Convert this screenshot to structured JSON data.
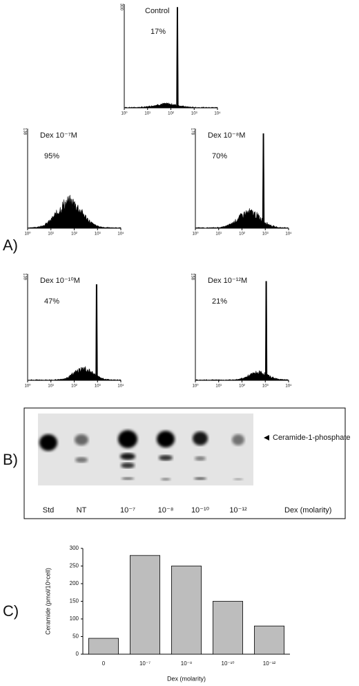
{
  "panel_a": {
    "label": "A)",
    "histograms": [
      {
        "title": "Control",
        "percent": "17%",
        "ymax_label": "300",
        "xtick_labels": [
          "10⁰",
          "10¹",
          "10²",
          "10³",
          "10⁴"
        ]
      },
      {
        "title": "Dex 10⁻⁷M",
        "percent": "95%",
        "ymax_label": "138",
        "xtick_labels": [
          "10⁰",
          "10¹",
          "10²",
          "10³",
          "10⁴"
        ]
      },
      {
        "title": "Dex 10⁻⁸M",
        "percent": "70%",
        "ymax_label": "178",
        "xtick_labels": [
          "10⁰",
          "10¹",
          "10²",
          "10³",
          "10⁴"
        ]
      },
      {
        "title": "Dex 10⁻¹⁰M",
        "percent": "47%",
        "ymax_label": "139",
        "xtick_labels": [
          "10⁰",
          "10¹",
          "10²",
          "10³",
          "10⁴"
        ]
      },
      {
        "title": "Dex 10⁻¹²M",
        "percent": "21%",
        "ymax_label": "158",
        "xtick_labels": [
          "10⁰",
          "10¹",
          "10²",
          "10³",
          "10⁴"
        ]
      }
    ]
  },
  "panel_b": {
    "label": "B)",
    "band_label": "Ceramide-1-phosphate",
    "lane_labels": [
      "Std",
      "NT",
      "10⁻⁷",
      "10⁻⁸",
      "10⁻¹⁰",
      "10⁻¹²"
    ],
    "axis_label": "Dex (molarity)"
  },
  "chart_data": {
    "type": "bar",
    "panel_label": "C)",
    "y_label": "Ceramide (pmol/10⁶cell)",
    "x_label": "Dex (molarity)",
    "categories": [
      "0",
      "10⁻⁷",
      "10⁻⁸",
      "10⁻¹⁰",
      "10⁻¹²"
    ],
    "values": [
      45,
      280,
      250,
      150,
      80
    ],
    "color": "#bdbdbd",
    "ylim": [
      0,
      300
    ],
    "yticks": [
      0,
      50,
      100,
      150,
      200,
      250,
      300
    ]
  }
}
